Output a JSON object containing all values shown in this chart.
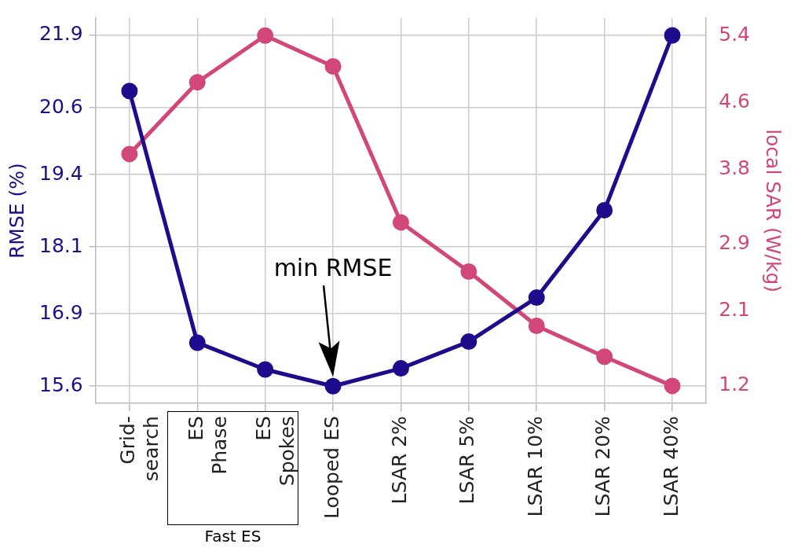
{
  "chart_data": {
    "type": "line",
    "categories": [
      "Grid-\nsearch",
      "ES\nPhase",
      "ES\nSpokes",
      "Looped ES",
      "LSAR 2%",
      "LSAR 5%",
      "LSAR 10%",
      "LSAR 20%",
      "LSAR 40%"
    ],
    "series": [
      {
        "color": "#1d0c8c",
        "values": [
          20.9,
          16.38,
          15.9,
          15.6,
          15.92,
          16.4,
          17.19,
          18.76,
          21.9
        ]
      },
      {
        "color": "#d1477a",
        "axis": "y2",
        "values": [
          3.98,
          4.84,
          5.4,
          5.03,
          3.16,
          2.57,
          1.92,
          1.55,
          1.2
        ]
      }
    ],
    "ylabel": "RMSE (%)",
    "y2label": "local SAR (W/kg)",
    "ylim": [
      15.29,
      22.21
    ],
    "yticks": [
      15.6,
      16.9,
      18.1,
      19.4,
      20.6,
      21.9
    ],
    "y2lim": [
      0.99,
      5.61
    ],
    "y2ticks": [
      1.2,
      2.1,
      2.9,
      3.8,
      4.6,
      5.4
    ],
    "annotations": [
      "min RMSE",
      "Fast ES"
    ],
    "grid": true,
    "legend": false,
    "marker": "circle",
    "line_style": "solid"
  }
}
